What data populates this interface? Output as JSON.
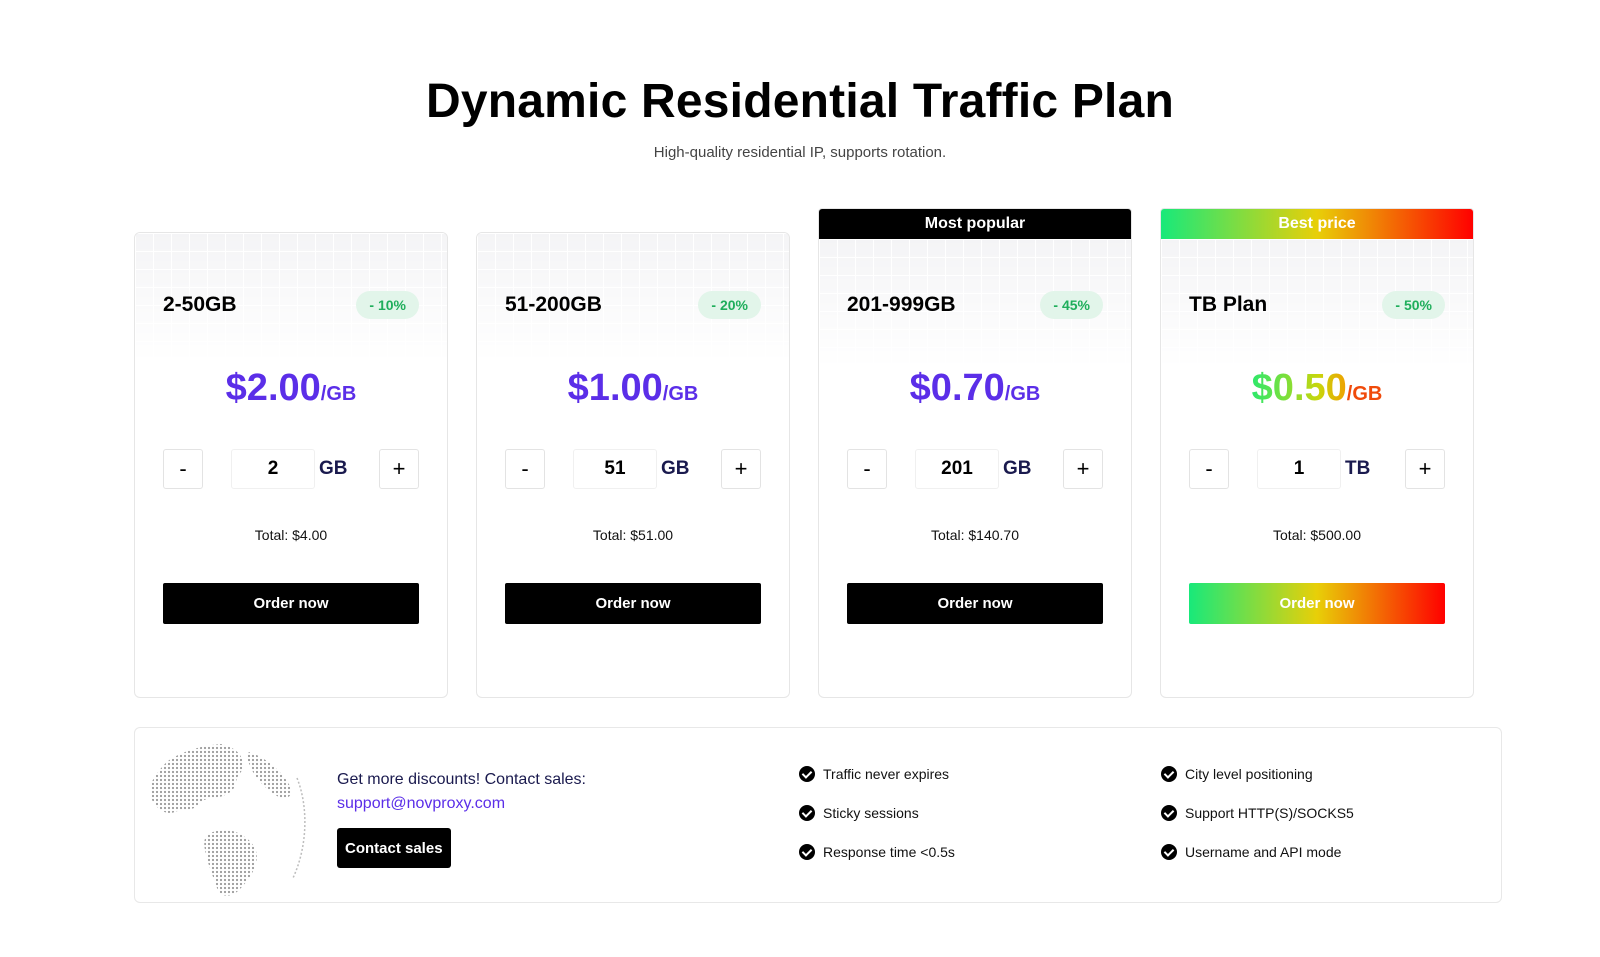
{
  "header": {
    "title": "Dynamic Residential Traffic Plan",
    "subtitle": "High-quality residential IP, supports rotation."
  },
  "plans": [
    {
      "banner": "",
      "tier": "2-50GB",
      "discount": "- 10%",
      "price": "$2.00",
      "unit": "/GB",
      "quantity": "2",
      "quantity_unit": "GB",
      "minus_label": "-",
      "plus_label": "+",
      "total": "Total: $4.00",
      "order_label": "Order now"
    },
    {
      "banner": "",
      "tier": "51-200GB",
      "discount": "- 20%",
      "price": "$1.00",
      "unit": "/GB",
      "quantity": "51",
      "quantity_unit": "GB",
      "minus_label": "-",
      "plus_label": "+",
      "total": "Total: $51.00",
      "order_label": "Order now"
    },
    {
      "banner": "Most popular",
      "tier": "201-999GB",
      "discount": "- 45%",
      "price": "$0.70",
      "unit": "/GB",
      "quantity": "201",
      "quantity_unit": "GB",
      "minus_label": "-",
      "plus_label": "+",
      "total": "Total: $140.70",
      "order_label": "Order now"
    },
    {
      "banner": "Best price",
      "tier": "TB Plan",
      "discount": "- 50%",
      "price": "$0.50",
      "unit": "/GB",
      "quantity": "1",
      "quantity_unit": "TB",
      "minus_label": "-",
      "plus_label": "+",
      "total": "Total: $500.00",
      "order_label": "Order now"
    }
  ],
  "contact": {
    "text": "Get more discounts! Contact sales:",
    "email": "support@novproxy.com",
    "button_label": "Contact sales"
  },
  "features": [
    "Traffic never expires",
    "Sticky sessions",
    "Response time <0.5s",
    "City level positioning",
    "Support HTTP(S)/SOCKS5",
    "Username and API mode"
  ],
  "colors": {
    "accent_purple": "#5b2ee8",
    "discount_green": "#1fae5b",
    "gradient_start": "#18e97a",
    "gradient_mid": "#e8cf08",
    "gradient_end": "#ff0000"
  }
}
